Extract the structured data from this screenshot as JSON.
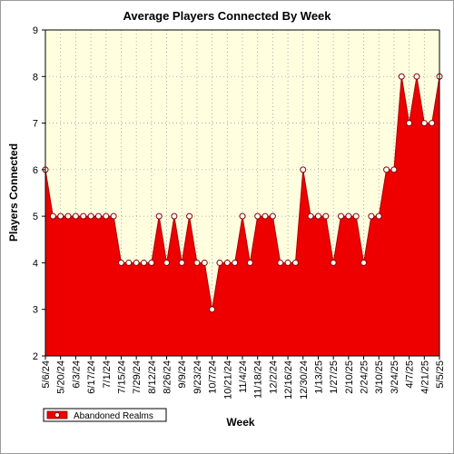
{
  "chart_data": {
    "type": "area",
    "title": "Average Players Connected By Week",
    "xlabel": "Week",
    "ylabel": "Players Connected",
    "ylim": [
      2,
      9
    ],
    "yticks": [
      2,
      3,
      4,
      5,
      6,
      7,
      8,
      9
    ],
    "grid": true,
    "legend_position": "bottom-left",
    "x_tick_labels": [
      "5/6/24",
      "5/20/24",
      "6/3/24",
      "6/17/24",
      "7/1/24",
      "7/15/24",
      "7/29/24",
      "8/12/24",
      "8/26/24",
      "9/9/24",
      "9/23/24",
      "10/7/24",
      "10/21/24",
      "11/4/24",
      "11/18/24",
      "12/2/24",
      "12/16/24",
      "12/30/24",
      "1/13/25",
      "1/27/25",
      "2/10/25",
      "2/24/25",
      "3/10/25",
      "3/24/25",
      "4/7/25",
      "4/21/25",
      "5/5/25"
    ],
    "x": [
      "5/6/24",
      "5/13/24",
      "5/20/24",
      "5/27/24",
      "6/3/24",
      "6/10/24",
      "6/17/24",
      "6/24/24",
      "7/1/24",
      "7/8/24",
      "7/15/24",
      "7/22/24",
      "7/29/24",
      "8/5/24",
      "8/12/24",
      "8/19/24",
      "8/26/24",
      "9/2/24",
      "9/9/24",
      "9/16/24",
      "9/23/24",
      "9/30/24",
      "10/7/24",
      "10/14/24",
      "10/21/24",
      "10/28/24",
      "11/4/24",
      "11/11/24",
      "11/18/24",
      "11/25/24",
      "12/2/24",
      "12/9/24",
      "12/16/24",
      "12/23/24",
      "12/30/24",
      "1/6/25",
      "1/13/25",
      "1/20/25",
      "1/27/25",
      "2/3/25",
      "2/10/25",
      "2/17/25",
      "2/24/25",
      "3/3/25",
      "3/10/25",
      "3/17/25",
      "3/24/25",
      "3/31/25",
      "4/7/25",
      "4/14/25",
      "4/21/25",
      "4/28/25",
      "5/5/25"
    ],
    "series": [
      {
        "name": "Abandoned Realms",
        "color": "#ee0000",
        "values": [
          6,
          5,
          5,
          5,
          5,
          5,
          5,
          5,
          5,
          5,
          4,
          4,
          4,
          4,
          4,
          5,
          4,
          5,
          4,
          5,
          4,
          4,
          3,
          4,
          4,
          4,
          5,
          4,
          5,
          5,
          5,
          4,
          4,
          4,
          6,
          5,
          5,
          5,
          4,
          5,
          5,
          5,
          4,
          5,
          5,
          6,
          6,
          8,
          7,
          8,
          7,
          7,
          8
        ]
      }
    ],
    "colors": {
      "plot_background": "#ffffe0",
      "grid": "#9a9a9a",
      "area": "#ee0000",
      "marker_fill": "#ffffff"
    }
  }
}
